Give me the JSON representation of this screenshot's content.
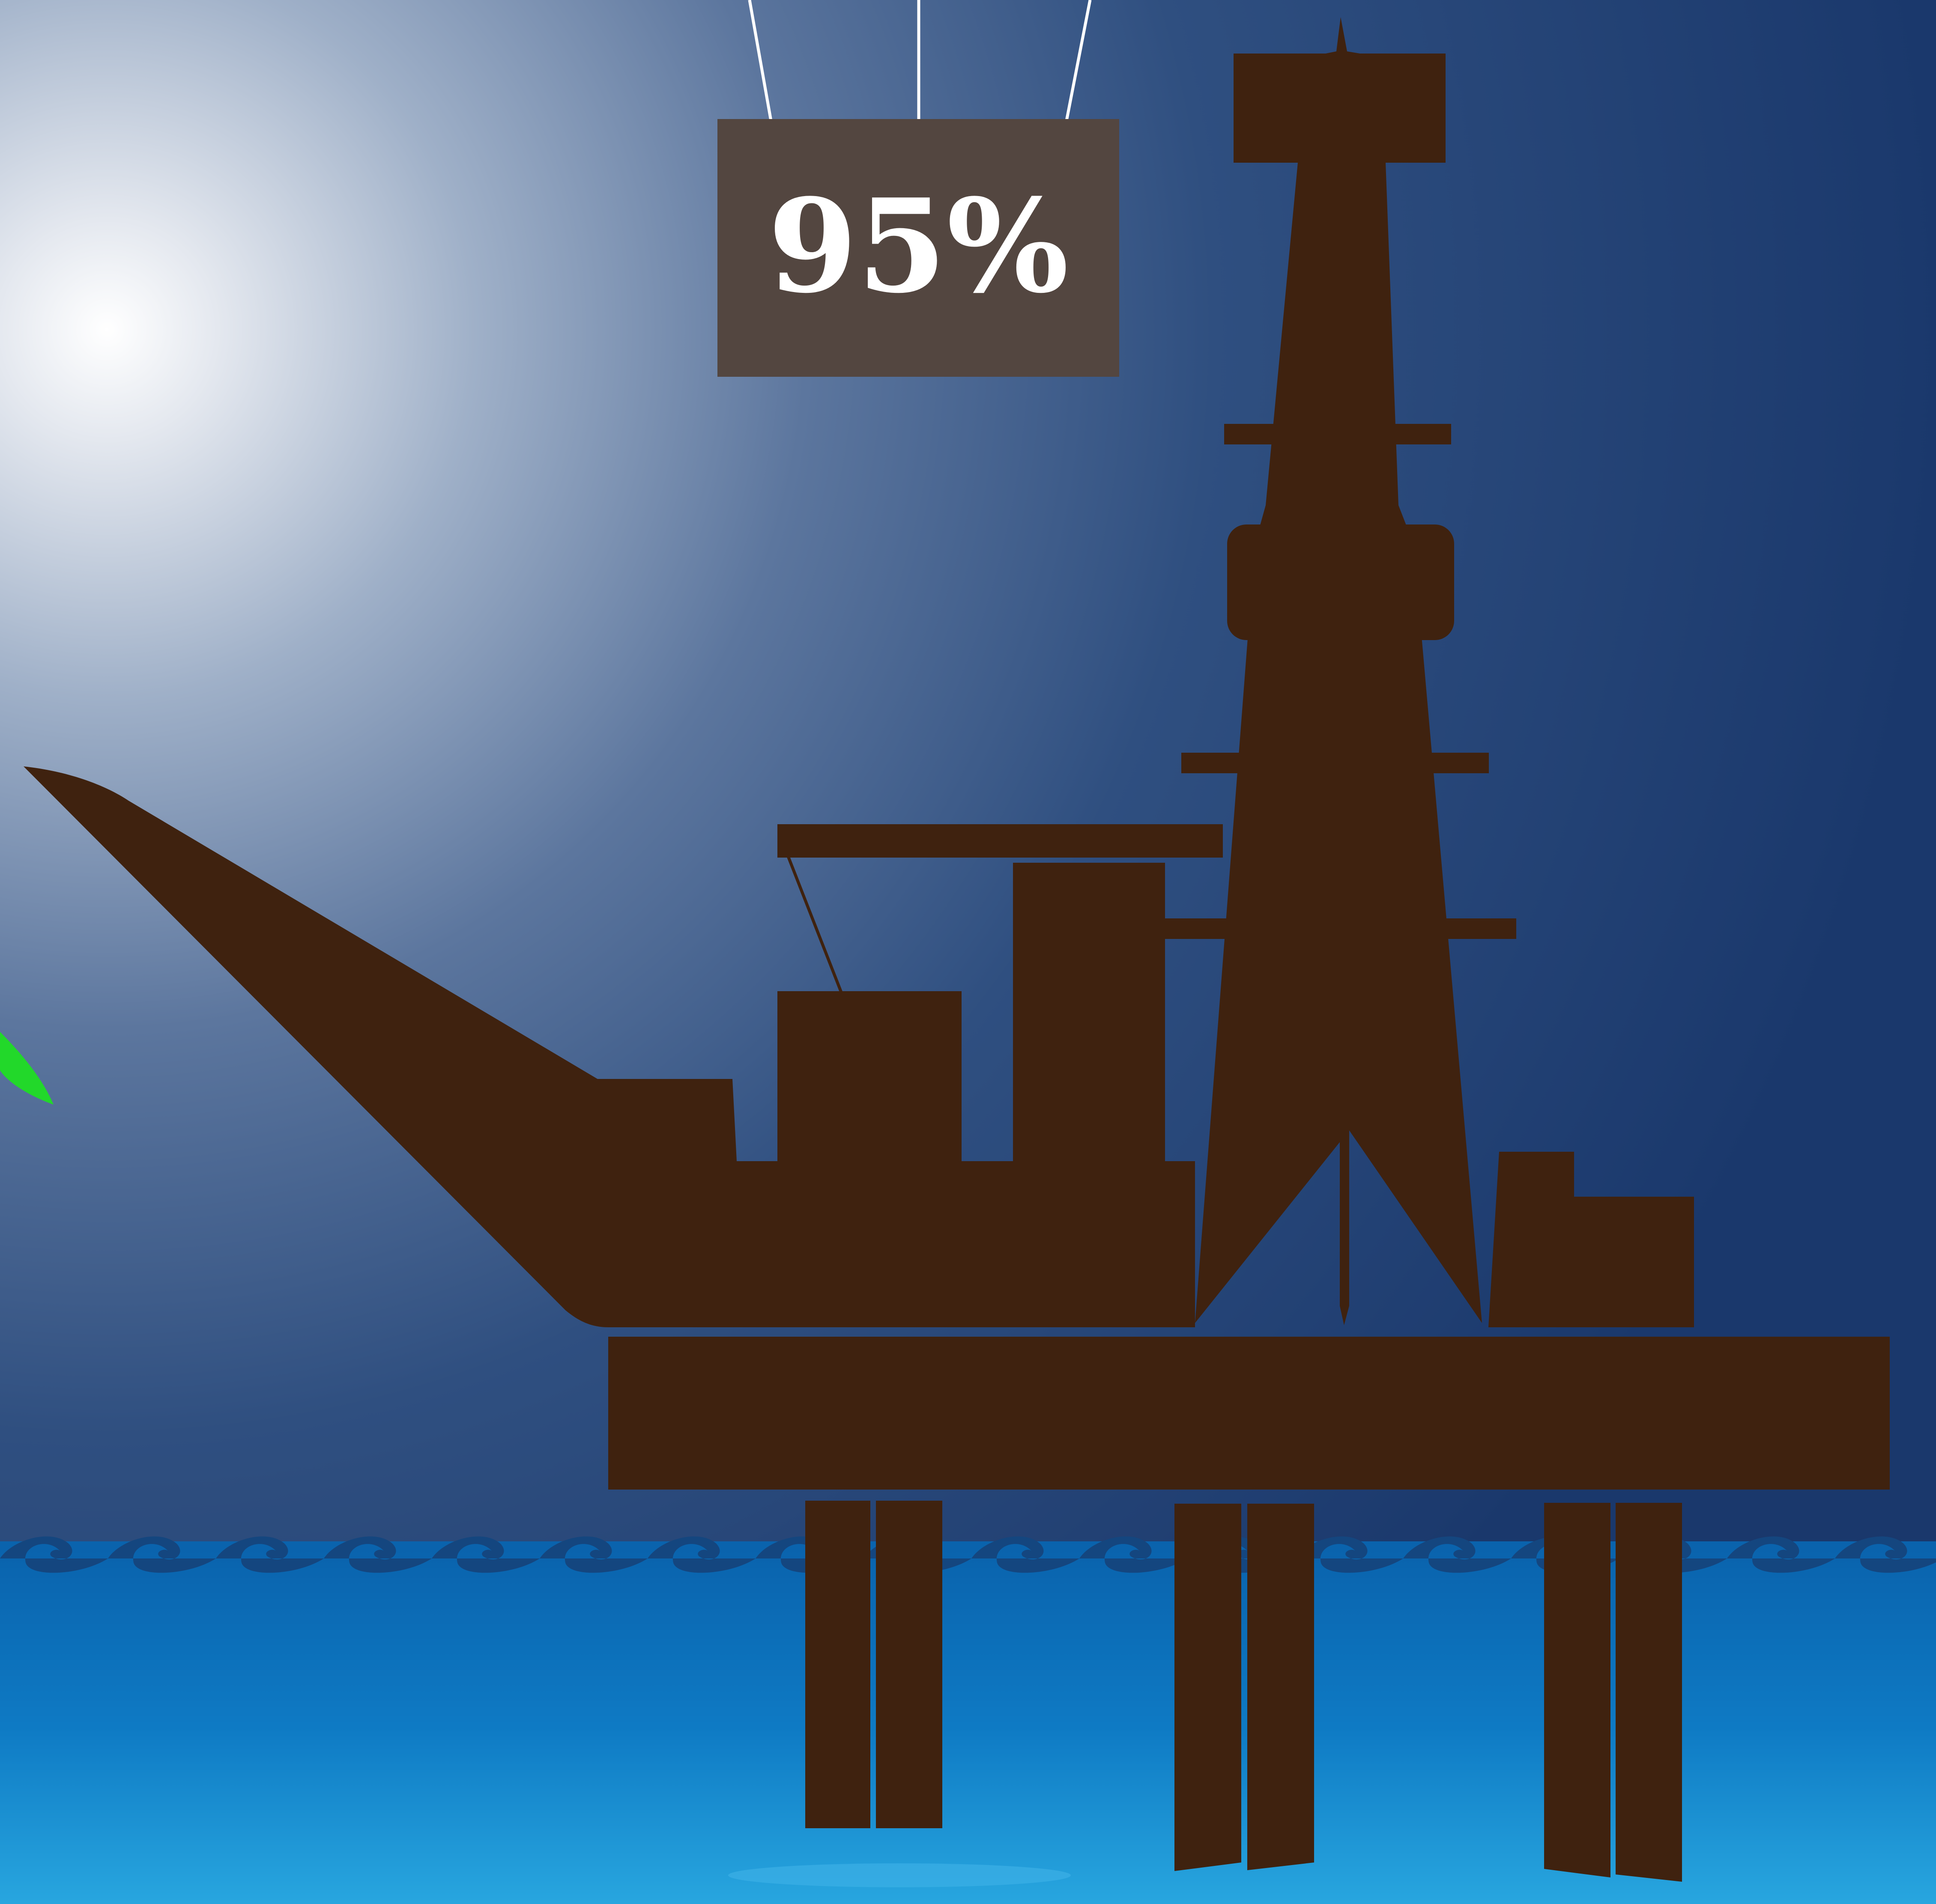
{
  "sign": {
    "label": "95%"
  },
  "colors": {
    "sky_dark": "#1c3a6e",
    "sky_glow": "#ffffff",
    "sea_top": "#0b6cb5",
    "sea_bottom": "#25a3df",
    "wave_crest": "#14467f",
    "rig_silhouette": "#3f220f",
    "sign_panel": "#534640",
    "leaf": "#22d82a"
  },
  "icons": [
    "oil-rig-icon",
    "sun-glare-icon",
    "sea-wave-icon",
    "leaf-icon"
  ]
}
